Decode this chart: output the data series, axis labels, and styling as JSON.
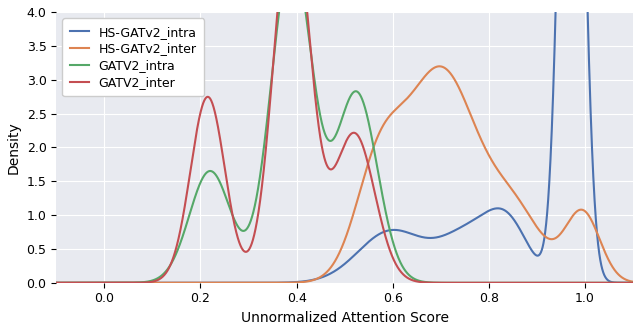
{
  "xlabel": "Unnormalized Attention Score",
  "ylabel": "Density",
  "xlim": [
    -0.1,
    1.1
  ],
  "ylim": [
    0.0,
    4.0
  ],
  "bg_color": "#e8eaf0",
  "legend_labels": [
    "HS-GATv2_intra",
    "HS-GATv2_inter",
    "GATV2_intra",
    "GATV2_inter"
  ],
  "line_colors": [
    "#4c72b0",
    "#dd8452",
    "#55a868",
    "#c44e52"
  ],
  "hs_intra": [
    {
      "mean": 0.972,
      "std": 0.013,
      "weight": 4.8
    },
    {
      "mean": 0.595,
      "std": 0.065,
      "weight": 0.9
    },
    {
      "mean": 0.76,
      "std": 0.06,
      "weight": 0.8
    },
    {
      "mean": 0.84,
      "std": 0.04,
      "weight": 0.55
    }
  ],
  "hs_inter": [
    {
      "mean": 0.7,
      "std": 0.072,
      "weight": 3.8
    },
    {
      "mean": 0.57,
      "std": 0.045,
      "weight": 1.2
    },
    {
      "mean": 0.855,
      "std": 0.055,
      "weight": 0.9
    },
    {
      "mean": 0.995,
      "std": 0.03,
      "weight": 0.6
    }
  ],
  "gatv2_intra": [
    {
      "mean": 0.39,
      "std": 0.04,
      "weight": 3.8
    },
    {
      "mean": 0.22,
      "std": 0.04,
      "weight": 1.3
    },
    {
      "mean": 0.525,
      "std": 0.04,
      "weight": 2.2
    }
  ],
  "gatv2_inter": [
    {
      "mean": 0.39,
      "std": 0.035,
      "weight": 4.0
    },
    {
      "mean": 0.215,
      "std": 0.033,
      "weight": 1.9
    },
    {
      "mean": 0.52,
      "std": 0.04,
      "weight": 1.8
    }
  ]
}
